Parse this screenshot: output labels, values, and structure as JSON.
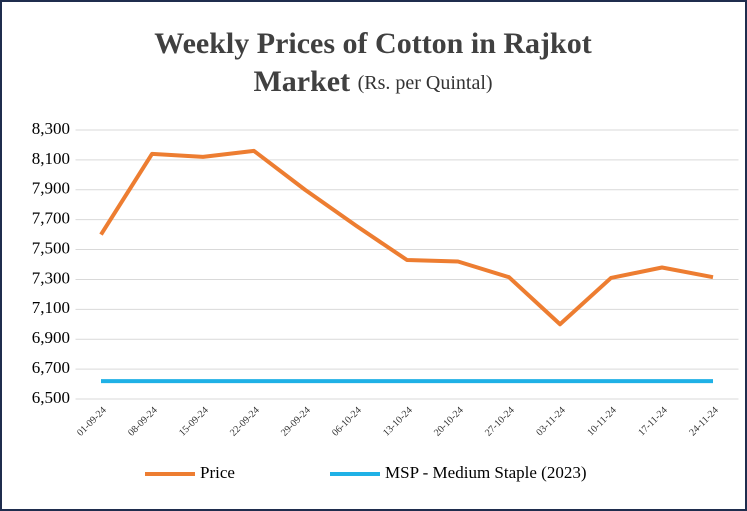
{
  "chart_data": {
    "type": "line",
    "title": "Weekly Prices of Cotton in Rajkot Market",
    "subtitle": "(Rs. per Quintal)",
    "categories": [
      "01-09-24",
      "08-09-24",
      "15-09-24",
      "22-09-24",
      "29-09-24",
      "06-10-24",
      "13-10-24",
      "20-10-24",
      "27-10-24",
      "03-11-24",
      "10-11-24",
      "17-11-24",
      "24-11-24"
    ],
    "series": [
      {
        "name": "Price",
        "color": "#ed7d31",
        "values": [
          7600,
          8140,
          8120,
          8160,
          7900,
          7660,
          7430,
          7420,
          7315,
          7000,
          7310,
          7380,
          7315
        ]
      },
      {
        "name": "MSP - Medium Staple (2023)",
        "color": "#1fb1e6",
        "values": [
          6620,
          6620,
          6620,
          6620,
          6620,
          6620,
          6620,
          6620,
          6620,
          6620,
          6620,
          6620,
          6620
        ]
      }
    ],
    "ylim": [
      6500,
      8300
    ],
    "yticks": [
      {
        "value": 6500,
        "label": "6,500"
      },
      {
        "value": 6700,
        "label": "6,700"
      },
      {
        "value": 6900,
        "label": "6,900"
      },
      {
        "value": 7100,
        "label": "7,100"
      },
      {
        "value": 7300,
        "label": "7,300"
      },
      {
        "value": 7500,
        "label": "7,500"
      },
      {
        "value": 7700,
        "label": "7,700"
      },
      {
        "value": 7900,
        "label": "7,900"
      },
      {
        "value": 8100,
        "label": "8,100"
      },
      {
        "value": 8300,
        "label": "8,300"
      }
    ],
    "grid": true
  }
}
